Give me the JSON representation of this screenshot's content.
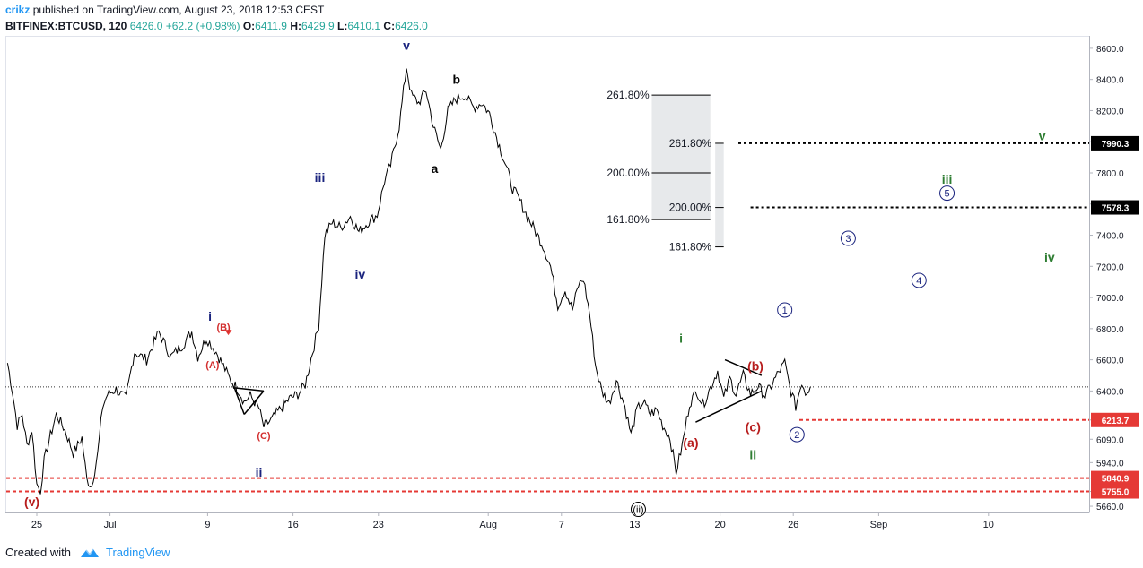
{
  "header": {
    "author": "crikz",
    "published_text": "published on TradingView.com, August 23, 2018 12:53 CEST",
    "symbol": "BITFINEX:BTCUSD, 120",
    "last": "6426.0",
    "change": "+62.2 (+0.98%)",
    "open_label": "O:",
    "open": "6411.9",
    "high_label": "H:",
    "high": "6429.9",
    "low_label": "L:",
    "low": "6410.1",
    "close_label": "C:",
    "close": "6426.0"
  },
  "footer": {
    "created_with": "Created with",
    "brand": "TradingView"
  },
  "chart_data": {
    "type": "line",
    "instrument": "BITFINEX:BTCUSD",
    "interval": "120",
    "ylim": [
      5620,
      8680
    ],
    "x_ticks": [
      {
        "label": "25",
        "day": 0
      },
      {
        "label": "Jul",
        "day": 6
      },
      {
        "label": "9",
        "day": 14
      },
      {
        "label": "16",
        "day": 21
      },
      {
        "label": "23",
        "day": 28
      },
      {
        "label": "Aug",
        "day": 37
      },
      {
        "label": "7",
        "day": 43
      },
      {
        "label": "13",
        "day": 49
      },
      {
        "label": "20",
        "day": 56
      },
      {
        "label": "26",
        "day": 62
      },
      {
        "label": "Sep",
        "day": 69
      },
      {
        "label": "10",
        "day": 78
      }
    ],
    "y_ticks": [
      "8600.0",
      "8400.0",
      "8200.0",
      "8000.0",
      "7800.0",
      "7600.0",
      "7400.0",
      "7200.0",
      "7000.0",
      "6800.0",
      "6600.0",
      "6400.0",
      "6213.7",
      "6090.0",
      "5940.0",
      "5840.9",
      "5755.0",
      "5660.0"
    ],
    "price_points": [
      [
        -2.4,
        6580
      ],
      [
        -2.0,
        6400
      ],
      [
        -1.6,
        6180
      ],
      [
        -1.2,
        6250
      ],
      [
        -0.8,
        6050
      ],
      [
        -0.4,
        6150
      ],
      [
        0.0,
        5800
      ],
      [
        0.3,
        5760
      ],
      [
        0.6,
        5950
      ],
      [
        1.0,
        6080
      ],
      [
        1.6,
        6250
      ],
      [
        2.3,
        6150
      ],
      [
        3.0,
        6000
      ],
      [
        3.7,
        6100
      ],
      [
        4.1,
        5830
      ],
      [
        4.5,
        5790
      ],
      [
        5.0,
        6000
      ],
      [
        5.4,
        6300
      ],
      [
        5.8,
        6380
      ],
      [
        6.5,
        6410
      ],
      [
        7.3,
        6350
      ],
      [
        8.0,
        6650
      ],
      [
        9.0,
        6600
      ],
      [
        10.0,
        6780
      ],
      [
        11.0,
        6620
      ],
      [
        12.0,
        6700
      ],
      [
        12.7,
        6780
      ],
      [
        13.2,
        6620
      ],
      [
        13.9,
        6740
      ],
      [
        14.7,
        6650
      ],
      [
        15.3,
        6560
      ],
      [
        15.8,
        6480
      ],
      [
        16.5,
        6410
      ],
      [
        17.0,
        6330
      ],
      [
        17.5,
        6370
      ],
      [
        18.2,
        6290
      ],
      [
        18.6,
        6170
      ],
      [
        19.3,
        6220
      ],
      [
        20.0,
        6290
      ],
      [
        20.7,
        6350
      ],
      [
        21.4,
        6380
      ],
      [
        22.0,
        6440
      ],
      [
        22.6,
        6650
      ],
      [
        23.1,
        6820
      ],
      [
        23.6,
        7400
      ],
      [
        24.2,
        7480
      ],
      [
        24.9,
        7450
      ],
      [
        25.7,
        7520
      ],
      [
        26.4,
        7420
      ],
      [
        27.1,
        7480
      ],
      [
        27.9,
        7530
      ],
      [
        28.5,
        7750
      ],
      [
        29.0,
        7850
      ],
      [
        29.7,
        8100
      ],
      [
        30.3,
        8480
      ],
      [
        30.7,
        8300
      ],
      [
        31.3,
        8250
      ],
      [
        31.9,
        8330
      ],
      [
        32.5,
        8100
      ],
      [
        33.1,
        7950
      ],
      [
        33.7,
        8200
      ],
      [
        34.3,
        8270
      ],
      [
        35.0,
        8300
      ],
      [
        35.8,
        8220
      ],
      [
        36.5,
        8250
      ],
      [
        37.1,
        8180
      ],
      [
        37.8,
        8000
      ],
      [
        38.4,
        7860
      ],
      [
        39.0,
        7700
      ],
      [
        39.6,
        7620
      ],
      [
        40.2,
        7520
      ],
      [
        40.9,
        7420
      ],
      [
        41.5,
        7330
      ],
      [
        42.1,
        7200
      ],
      [
        42.7,
        6950
      ],
      [
        43.3,
        7050
      ],
      [
        43.9,
        6920
      ],
      [
        44.4,
        7080
      ],
      [
        44.8,
        7120
      ],
      [
        45.3,
        6900
      ],
      [
        45.8,
        6560
      ],
      [
        46.3,
        6400
      ],
      [
        46.9,
        6320
      ],
      [
        47.5,
        6470
      ],
      [
        48.2,
        6300
      ],
      [
        48.7,
        6120
      ],
      [
        49.2,
        6280
      ],
      [
        49.7,
        6330
      ],
      [
        50.3,
        6250
      ],
      [
        50.8,
        6280
      ],
      [
        51.3,
        6180
      ],
      [
        51.9,
        6100
      ],
      [
        52.4,
        5880
      ],
      [
        52.9,
        6050
      ],
      [
        53.5,
        6320
      ],
      [
        54.1,
        6400
      ],
      [
        54.6,
        6310
      ],
      [
        55.2,
        6420
      ],
      [
        55.8,
        6530
      ],
      [
        56.3,
        6350
      ],
      [
        56.8,
        6480
      ],
      [
        57.3,
        6380
      ],
      [
        57.9,
        6500
      ],
      [
        58.5,
        6380
      ],
      [
        59.1,
        6430
      ],
      [
        59.7,
        6370
      ],
      [
        60.3,
        6450
      ],
      [
        60.8,
        6520
      ],
      [
        61.3,
        6580
      ],
      [
        61.7,
        6430
      ],
      [
        62.2,
        6300
      ],
      [
        62.7,
        6460
      ],
      [
        63.0,
        6390
      ],
      [
        63.4,
        6426
      ]
    ],
    "price_levels": [
      {
        "value": 7990.3,
        "label": "7990.3",
        "color": "#000000",
        "style": "dashed",
        "from_day": 57.5
      },
      {
        "value": 7578.3,
        "label": "7578.3",
        "color": "#000000",
        "style": "dashed",
        "from_day": 58.5
      },
      {
        "value": 6213.7,
        "label": "6213.7",
        "color": "#e53935",
        "style": "dashed",
        "from_day": 62.5
      },
      {
        "value": 5840.9,
        "label": "5840.9",
        "color": "#e53935",
        "style": "dashed",
        "from_day": -2.5
      },
      {
        "value": 5755.0,
        "label": "5755.0",
        "color": "#e53935",
        "style": "dashed",
        "from_day": -2.5
      }
    ],
    "current_price": 6426.0,
    "fib_extension_1": {
      "day_range": [
        50.4,
        55.2
      ],
      "label_day": 50.2,
      "levels": [
        {
          "label": "261.80%",
          "value": 8300
        },
        {
          "label": "200.00%",
          "value": 7800
        },
        {
          "label": "161.80%",
          "value": 7500
        }
      ]
    },
    "fib_extension_2": {
      "day_range": [
        55.6,
        56.3
      ],
      "label_day": 55.3,
      "levels": [
        {
          "label": "261.80%",
          "value": 7990
        },
        {
          "label": "200.00%",
          "value": 7578
        },
        {
          "label": "161.80%",
          "value": 7325
        }
      ]
    },
    "wave_labels": [
      {
        "text": "(v)",
        "day": -0.4,
        "price": 5690,
        "color": "#b71c1c",
        "style": "paren",
        "size": 14
      },
      {
        "text": "i",
        "day": 14.2,
        "price": 6880,
        "color": "#1a237e",
        "style": "plain",
        "size": 14
      },
      {
        "text": "(B)",
        "day": 15.3,
        "price": 6815,
        "color": "#d32f2f",
        "style": "plain",
        "size": 11
      },
      {
        "text": "(A)",
        "day": 14.4,
        "price": 6575,
        "color": "#d32f2f",
        "style": "plain",
        "size": 11
      },
      {
        "text": "(C)",
        "day": 18.6,
        "price": 6120,
        "color": "#d32f2f",
        "style": "plain",
        "size": 11
      },
      {
        "text": "ii",
        "day": 18.2,
        "price": 5880,
        "color": "#1a237e",
        "style": "plain",
        "size": 14
      },
      {
        "text": "iii",
        "day": 23.2,
        "price": 7770,
        "color": "#1a237e",
        "style": "plain",
        "size": 14
      },
      {
        "text": "iv",
        "day": 26.5,
        "price": 7150,
        "color": "#1a237e",
        "style": "plain",
        "size": 14
      },
      {
        "text": "v",
        "day": 30.3,
        "price": 8620,
        "color": "#1a237e",
        "style": "plain",
        "size": 14
      },
      {
        "text": "a",
        "day": 32.6,
        "price": 7830,
        "color": "#000000",
        "style": "plain",
        "size": 14
      },
      {
        "text": "b",
        "day": 34.4,
        "price": 8400,
        "color": "#000000",
        "style": "plain",
        "size": 14
      },
      {
        "text": "i",
        "day": 52.8,
        "price": 6740,
        "color": "#2e7d32",
        "style": "plain",
        "size": 14
      },
      {
        "text": "(a)",
        "day": 53.6,
        "price": 6070,
        "color": "#b71c1c",
        "style": "plain",
        "size": 14
      },
      {
        "text": "(b)",
        "day": 58.9,
        "price": 6560,
        "color": "#b71c1c",
        "style": "plain",
        "size": 14
      },
      {
        "text": "(c)",
        "day": 58.7,
        "price": 6170,
        "color": "#b71c1c",
        "style": "plain",
        "size": 14
      },
      {
        "text": "ii",
        "day": 58.7,
        "price": 5990,
        "color": "#2e7d32",
        "style": "plain",
        "size": 14
      },
      {
        "text": "(ii)",
        "day": 49.3,
        "price": 5640,
        "color": "#000000",
        "style": "circled",
        "size": 11
      },
      {
        "text": "1",
        "day": 61.3,
        "price": 6920,
        "color": "#1a237e",
        "style": "circled",
        "size": 11
      },
      {
        "text": "2",
        "day": 62.3,
        "price": 6120,
        "color": "#1a237e",
        "style": "circled",
        "size": 11
      },
      {
        "text": "3",
        "day": 66.5,
        "price": 7380,
        "color": "#1a237e",
        "style": "circled",
        "size": 11
      },
      {
        "text": "4",
        "day": 72.3,
        "price": 7110,
        "color": "#1a237e",
        "style": "circled",
        "size": 11
      },
      {
        "text": "5",
        "day": 74.6,
        "price": 7670,
        "color": "#1a237e",
        "style": "circled",
        "size": 11
      },
      {
        "text": "iii",
        "day": 74.6,
        "price": 7760,
        "color": "#2e7d32",
        "style": "plain",
        "size": 14
      },
      {
        "text": "iv",
        "day": 83.0,
        "price": 7260,
        "color": "#2e7d32",
        "style": "plain",
        "size": 14
      },
      {
        "text": "v",
        "day": 82.4,
        "price": 8040,
        "color": "#2e7d32",
        "style": "plain",
        "size": 14
      }
    ],
    "trend_lines": [
      {
        "points": [
          [
            16.2,
            6420
          ],
          [
            18.6,
            6400
          ]
        ],
        "color": "#000000"
      },
      {
        "points": [
          [
            16.2,
            6420
          ],
          [
            17.0,
            6250
          ]
        ],
        "color": "#000000"
      },
      {
        "points": [
          [
            17.0,
            6250
          ],
          [
            18.6,
            6400
          ]
        ],
        "color": "#000000"
      },
      {
        "points": [
          [
            54.0,
            6200
          ],
          [
            59.4,
            6400
          ]
        ],
        "color": "#000000"
      },
      {
        "points": [
          [
            56.4,
            6600
          ],
          [
            59.4,
            6500
          ]
        ],
        "color": "#000000"
      }
    ],
    "grid": false,
    "axis_side": "right"
  }
}
